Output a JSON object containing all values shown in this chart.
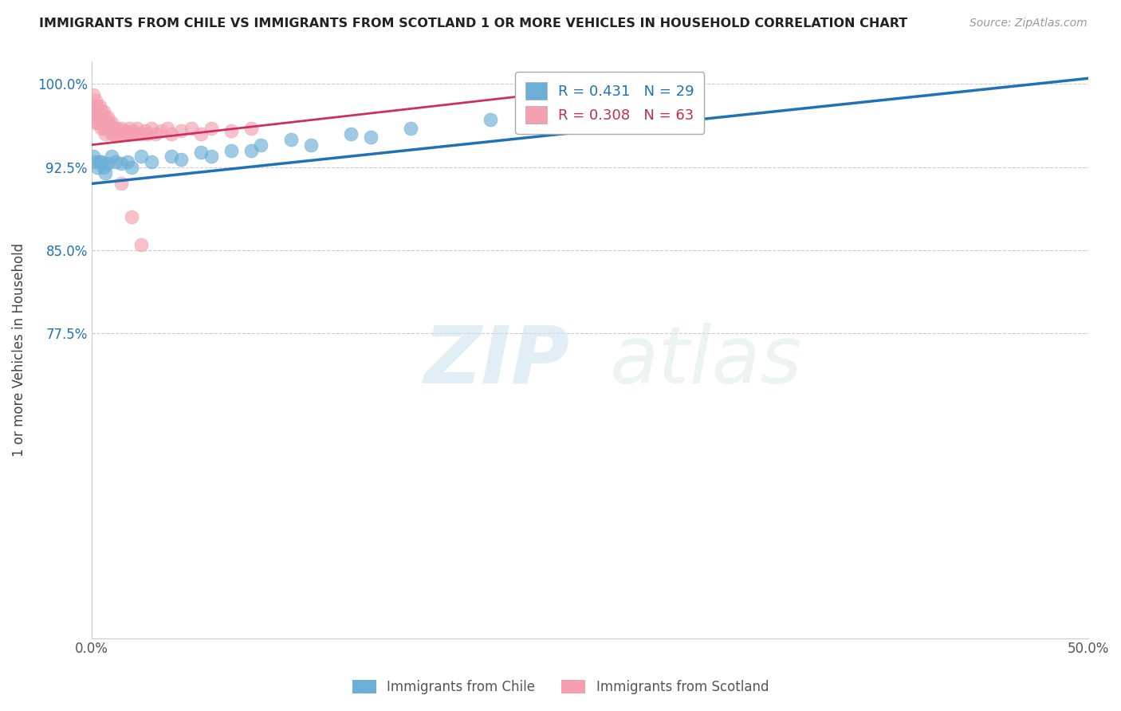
{
  "title": "IMMIGRANTS FROM CHILE VS IMMIGRANTS FROM SCOTLAND 1 OR MORE VEHICLES IN HOUSEHOLD CORRELATION CHART",
  "source": "Source: ZipAtlas.com",
  "ylabel": "1 or more Vehicles in Household",
  "xlim": [
    0.0,
    0.5
  ],
  "ylim": [
    0.5,
    1.02
  ],
  "xticks": [
    0.0,
    0.1,
    0.2,
    0.3,
    0.4,
    0.5
  ],
  "xticklabels": [
    "0.0%",
    "",
    "",
    "",
    "",
    "50.0%"
  ],
  "yticks": [
    0.775,
    0.85,
    0.925,
    1.0
  ],
  "yticklabels": [
    "77.5%",
    "85.0%",
    "92.5%",
    "100.0%"
  ],
  "legend_chile": "Immigrants from Chile",
  "legend_scotland": "Immigrants from Scotland",
  "R_chile": 0.431,
  "N_chile": 29,
  "R_scotland": 0.308,
  "N_scotland": 63,
  "blue_color": "#6baed6",
  "pink_color": "#f4a0b0",
  "blue_line_color": "#2171b5",
  "pink_line_color": "#cb3060",
  "watermark_zip": "ZIP",
  "watermark_atlas": "atlas",
  "chile_x": [
    0.001,
    0.002,
    0.003,
    0.004,
    0.005,
    0.006,
    0.007,
    0.008,
    0.01,
    0.012,
    0.015,
    0.018,
    0.02,
    0.025,
    0.03,
    0.04,
    0.055,
    0.07,
    0.085,
    0.1,
    0.13,
    0.16,
    0.2,
    0.25,
    0.045,
    0.06,
    0.08,
    0.11,
    0.14
  ],
  "chile_y": [
    0.935,
    0.93,
    0.925,
    0.93,
    0.93,
    0.925,
    0.92,
    0.928,
    0.935,
    0.93,
    0.928,
    0.93,
    0.925,
    0.935,
    0.93,
    0.935,
    0.938,
    0.94,
    0.945,
    0.95,
    0.955,
    0.96,
    0.968,
    0.975,
    0.932,
    0.935,
    0.94,
    0.945,
    0.952
  ],
  "scotland_x": [
    0.001,
    0.001,
    0.002,
    0.002,
    0.002,
    0.003,
    0.003,
    0.003,
    0.004,
    0.004,
    0.005,
    0.005,
    0.005,
    0.006,
    0.006,
    0.007,
    0.007,
    0.008,
    0.008,
    0.009,
    0.01,
    0.01,
    0.011,
    0.011,
    0.012,
    0.013,
    0.014,
    0.015,
    0.016,
    0.017,
    0.018,
    0.019,
    0.02,
    0.021,
    0.022,
    0.023,
    0.025,
    0.027,
    0.028,
    0.03,
    0.032,
    0.035,
    0.038,
    0.04,
    0.045,
    0.05,
    0.055,
    0.06,
    0.07,
    0.08,
    0.001,
    0.002,
    0.003,
    0.004,
    0.005,
    0.006,
    0.007,
    0.008,
    0.009,
    0.01,
    0.015,
    0.02,
    0.025
  ],
  "scotland_y": [
    0.98,
    0.975,
    0.975,
    0.97,
    0.965,
    0.975,
    0.97,
    0.965,
    0.97,
    0.965,
    0.97,
    0.965,
    0.96,
    0.965,
    0.96,
    0.96,
    0.955,
    0.965,
    0.96,
    0.96,
    0.96,
    0.955,
    0.96,
    0.955,
    0.955,
    0.96,
    0.955,
    0.96,
    0.955,
    0.958,
    0.955,
    0.96,
    0.955,
    0.958,
    0.955,
    0.96,
    0.955,
    0.958,
    0.955,
    0.96,
    0.955,
    0.958,
    0.96,
    0.955,
    0.958,
    0.96,
    0.955,
    0.96,
    0.958,
    0.96,
    0.99,
    0.985,
    0.98,
    0.98,
    0.975,
    0.975,
    0.97,
    0.97,
    0.965,
    0.965,
    0.91,
    0.88,
    0.855
  ],
  "blue_trendline_x": [
    0.0,
    0.5
  ],
  "blue_trendline_y": [
    0.91,
    1.005
  ],
  "pink_trendline_x": [
    0.0,
    0.28
  ],
  "pink_trendline_y": [
    0.945,
    1.002
  ]
}
